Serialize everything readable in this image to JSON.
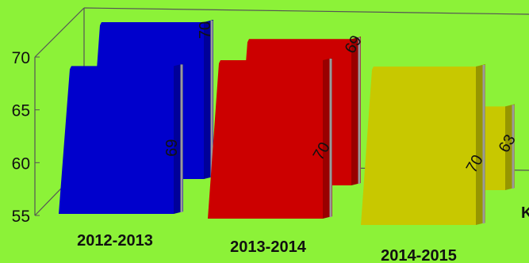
{
  "chart_data": {
    "type": "bar",
    "subtype": "3d-cylinder-column",
    "categories": [
      "2012-2013",
      "2013-2014",
      "2014-2015"
    ],
    "series": [
      {
        "values": [
          69,
          70,
          70
        ],
        "color": "#0000cc"
      },
      {
        "values": [
          70,
          69,
          63
        ],
        "color": "#cc0000"
      }
    ],
    "category_colors": [
      "#0000cc",
      "#cc0000",
      "#c8c800"
    ],
    "yticks": [
      55,
      60,
      65,
      70
    ],
    "ylim": [
      55,
      72
    ],
    "grid": false,
    "cut_off_label_fragment": "K"
  }
}
